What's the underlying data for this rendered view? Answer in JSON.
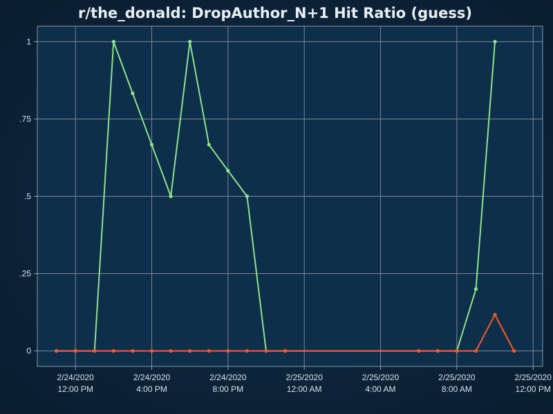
{
  "chart_data": {
    "type": "line",
    "title": "r/the_donald: DropAuthor_N+1 Hit Ratio (guess)",
    "xlabel": "",
    "ylabel": "",
    "x_start": "2/24/2020 10:00 AM",
    "x_end": "2/25/2020 12:30 PM",
    "xlim": [
      0,
      26.5
    ],
    "ylim": [
      -0.05,
      1.05
    ],
    "x_tick_values": [
      2,
      6,
      10,
      14,
      18,
      22,
      26
    ],
    "x_tick_labels": [
      [
        "2/24/2020",
        "12:00 PM"
      ],
      [
        "2/24/2020",
        "4:00 PM"
      ],
      [
        "2/24/2020",
        "8:00 PM"
      ],
      [
        "2/25/2020",
        "12:00 AM"
      ],
      [
        "2/25/2020",
        "4:00 AM"
      ],
      [
        "2/25/2020",
        "8:00 AM"
      ],
      [
        "2/25/2020",
        "12:00 PM"
      ]
    ],
    "y_tick_values": [
      0,
      0.25,
      0.5,
      0.75,
      1
    ],
    "y_tick_labels": [
      "0",
      ".25",
      ".5",
      ".75",
      "1"
    ],
    "grid": true,
    "legend": "none",
    "series": [
      {
        "color": "#8fe38a",
        "x": [
          1,
          2,
          3,
          4,
          5,
          6,
          7,
          8,
          9,
          10,
          11,
          12,
          13,
          21,
          22,
          23,
          24
        ],
        "y": [
          0,
          0,
          0,
          1,
          0.833,
          0.667,
          0.5,
          1,
          0.667,
          0.583,
          0.5,
          0,
          0,
          0,
          0,
          0.2,
          1
        ]
      },
      {
        "color": "#ff5a1f",
        "x": [
          1,
          2,
          3,
          4,
          5,
          6,
          7,
          8,
          9,
          10,
          11,
          12,
          13,
          20,
          21,
          22,
          23,
          24,
          25
        ],
        "y": [
          0,
          0,
          0,
          0,
          0,
          0,
          0,
          0,
          0,
          0,
          0,
          0,
          0,
          0,
          0,
          0,
          0,
          0.117,
          0
        ]
      }
    ]
  }
}
